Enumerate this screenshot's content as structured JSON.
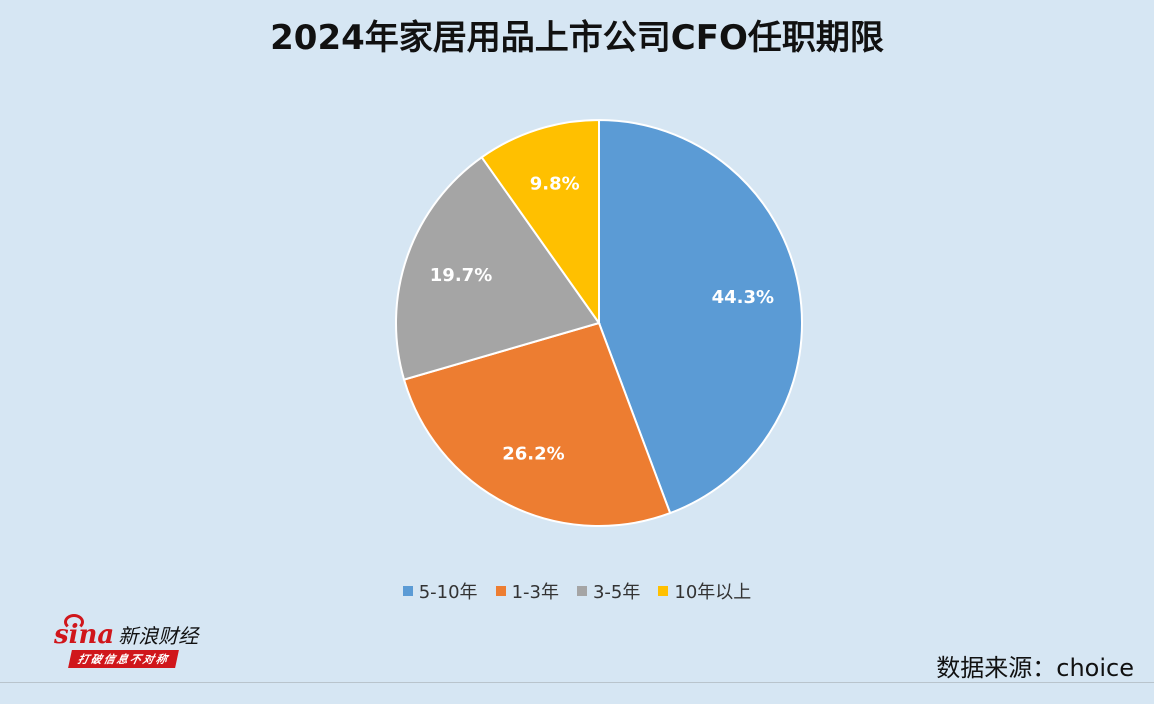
{
  "chart_data": {
    "type": "pie",
    "title": "2024年家居用品上市公司CFO任职期限",
    "categories": [
      "5-10年",
      "1-3年",
      "3-5年",
      "10年以上"
    ],
    "values": [
      44.3,
      26.2,
      19.7,
      9.8
    ],
    "labels": [
      "44.3%",
      "26.2%",
      "19.7%",
      "9.8%"
    ],
    "colors": [
      "#5b9bd5",
      "#ed7d31",
      "#a5a5a5",
      "#ffc000"
    ],
    "start_angle": "12 o'clock",
    "direction": "clockwise",
    "legend_position": "bottom"
  },
  "source_text": "数据来源：choice",
  "logo": {
    "mark": "sina",
    "name": "新浪财经",
    "slogan": "打破信息不对称"
  }
}
